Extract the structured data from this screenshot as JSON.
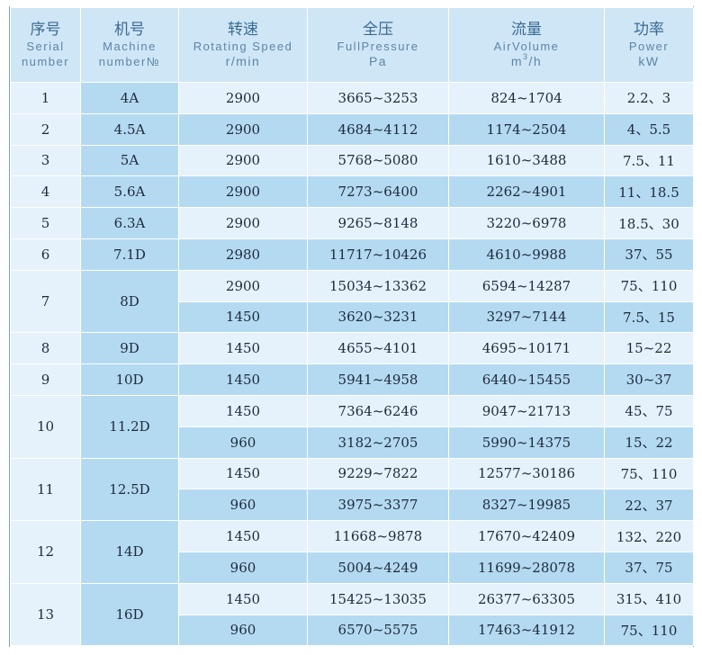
{
  "header": {
    "serial": {
      "zh": "序号",
      "en1": "Serial",
      "en2": "number"
    },
    "machine": {
      "zh": "机号",
      "en1": "Machine",
      "en2": "number№"
    },
    "speed": {
      "zh": "转速",
      "en1": "Rotating Speed",
      "unit": "r/min"
    },
    "pressure": {
      "zh": "全压",
      "en1": "FullPressure",
      "unit": "Pa"
    },
    "volume": {
      "zh": "流量",
      "en1": "AirVolume",
      "unit_base": "m",
      "unit_sup": "3",
      "unit_tail": "/h"
    },
    "power": {
      "zh": "功率",
      "en1": "Power",
      "unit": "kW"
    }
  },
  "groups": [
    {
      "serial": "1",
      "machine": "4A",
      "rows": [
        {
          "speed": "2900",
          "pressure": "3665~3253",
          "volume": "824~1704",
          "power": "2.2、3"
        }
      ]
    },
    {
      "serial": "2",
      "machine": "4.5A",
      "rows": [
        {
          "speed": "2900",
          "pressure": "4684~4112",
          "volume": "1174~2504",
          "power": "4、5.5"
        }
      ]
    },
    {
      "serial": "3",
      "machine": "5A",
      "rows": [
        {
          "speed": "2900",
          "pressure": "5768~5080",
          "volume": "1610~3488",
          "power": "7.5、11"
        }
      ]
    },
    {
      "serial": "4",
      "machine": "5.6A",
      "rows": [
        {
          "speed": "2900",
          "pressure": "7273~6400",
          "volume": "2262~4901",
          "power": "11、18.5"
        }
      ]
    },
    {
      "serial": "5",
      "machine": "6.3A",
      "rows": [
        {
          "speed": "2900",
          "pressure": "9265~8148",
          "volume": "3220~6978",
          "power": "18.5、30"
        }
      ]
    },
    {
      "serial": "6",
      "machine": "7.1D",
      "rows": [
        {
          "speed": "2980",
          "pressure": "11717~10426",
          "volume": "4610~9988",
          "power": "37、55"
        }
      ]
    },
    {
      "serial": "7",
      "machine": "8D",
      "rows": [
        {
          "speed": "2900",
          "pressure": "15034~13362",
          "volume": "6594~14287",
          "power": "75、110"
        },
        {
          "speed": "1450",
          "pressure": "3620~3231",
          "volume": "3297~7144",
          "power": "7.5、15"
        }
      ]
    },
    {
      "serial": "8",
      "machine": "9D",
      "rows": [
        {
          "speed": "1450",
          "pressure": "4655~4101",
          "volume": "4695~10171",
          "power": "15~22"
        }
      ]
    },
    {
      "serial": "9",
      "machine": "10D",
      "rows": [
        {
          "speed": "1450",
          "pressure": "5941~4958",
          "volume": "6440~15455",
          "power": "30~37"
        }
      ]
    },
    {
      "serial": "10",
      "machine": "11.2D",
      "rows": [
        {
          "speed": "1450",
          "pressure": "7364~6246",
          "volume": "9047~21713",
          "power": "45、75"
        },
        {
          "speed": "960",
          "pressure": "3182~2705",
          "volume": "5990~14375",
          "power": "15、22"
        }
      ]
    },
    {
      "serial": "11",
      "machine": "12.5D",
      "rows": [
        {
          "speed": "1450",
          "pressure": "9229~7822",
          "volume": "12577~30186",
          "power": "75、110"
        },
        {
          "speed": "960",
          "pressure": "3975~3377",
          "volume": "8327~19985",
          "power": "22、37"
        }
      ]
    },
    {
      "serial": "12",
      "machine": "14D",
      "rows": [
        {
          "speed": "1450",
          "pressure": "11668~9878",
          "volume": "17670~42409",
          "power": "132、220"
        },
        {
          "speed": "960",
          "pressure": "5004~4249",
          "volume": "11699~28078",
          "power": "37、75"
        }
      ]
    },
    {
      "serial": "13",
      "machine": "16D",
      "rows": [
        {
          "speed": "1450",
          "pressure": "15425~13035",
          "volume": "26377~63305",
          "power": "315、410"
        },
        {
          "speed": "960",
          "pressure": "6570~5575",
          "volume": "17463~41912",
          "power": "75、110"
        }
      ]
    }
  ]
}
